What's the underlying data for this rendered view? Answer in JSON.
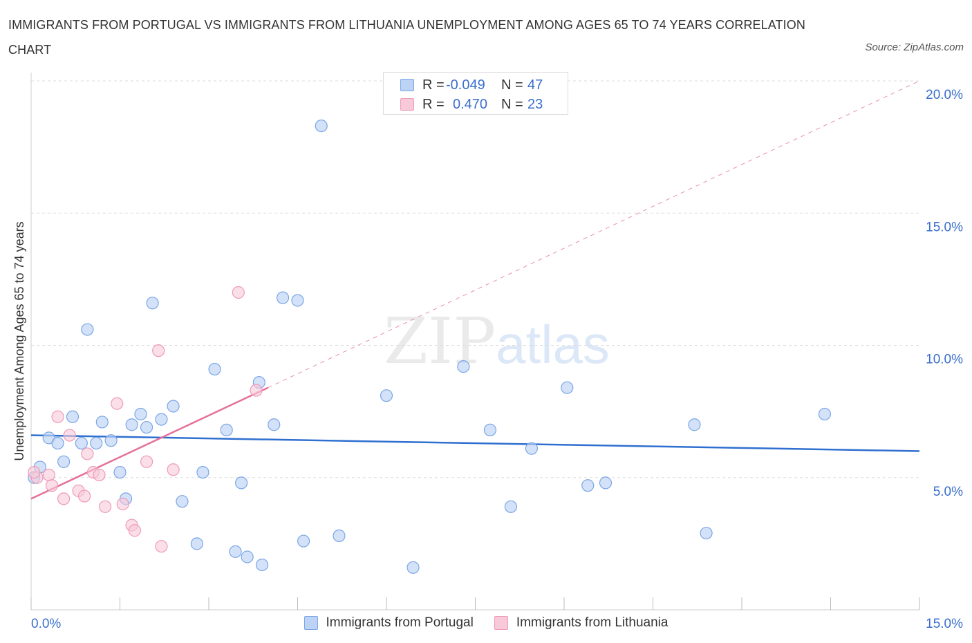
{
  "title": "IMMIGRANTS FROM PORTUGAL VS IMMIGRANTS FROM LITHUANIA UNEMPLOYMENT AMONG AGES 65 TO 74 YEARS CORRELATION CHART",
  "source": "Source: ZipAtlas.com",
  "watermark": {
    "zip": "ZIP",
    "atlas": "atlas"
  },
  "legend": {
    "rows": [
      {
        "r_label": "R =",
        "r_value": "-0.049",
        "n_label": "N =",
        "n_value": "47"
      },
      {
        "r_label": "R =",
        "r_value": "0.470",
        "n_label": "N =",
        "n_value": "23"
      }
    ]
  },
  "bottom_legend": {
    "portugal": "Immigrants from Portugal",
    "lithuania": "Immigrants from Lithuania"
  },
  "colors": {
    "blue_fill": "#bcd3f5",
    "blue_stroke": "#7aa6e6",
    "blue_line": "#2f6fd0",
    "pink_fill": "#f8c9d8",
    "pink_stroke": "#ee9ab6",
    "pink_line": "#e5709a",
    "grid": "#dddddd",
    "axis_text": "#3a6fcc"
  },
  "chart_data": {
    "type": "scatter",
    "title": "IMMIGRANTS FROM PORTUGAL VS IMMIGRANTS FROM LITHUANIA UNEMPLOYMENT AMONG AGES 65 TO 74 YEARS CORRELATION CHART",
    "xlabel": "",
    "ylabel": "Unemployment Among Ages 65 to 74 years",
    "xlim": [
      0,
      15
    ],
    "ylim": [
      0,
      20
    ],
    "x_tick_labels": {
      "left": "0.0%",
      "right": "15.0%"
    },
    "y_ticks": [
      {
        "value": 5,
        "label": "5.0%"
      },
      {
        "value": 10,
        "label": "10.0%"
      },
      {
        "value": 15,
        "label": "15.0%"
      },
      {
        "value": 20,
        "label": "20.0%"
      }
    ],
    "series": [
      {
        "name": "Immigrants from Portugal",
        "R": -0.049,
        "N": 47,
        "trend": {
          "x": [
            0,
            15
          ],
          "y": [
            6.6,
            6.0
          ]
        },
        "points": [
          [
            0.05,
            5.0
          ],
          [
            0.15,
            5.4
          ],
          [
            0.3,
            6.5
          ],
          [
            0.45,
            6.3
          ],
          [
            0.55,
            5.6
          ],
          [
            0.7,
            7.3
          ],
          [
            0.85,
            6.3
          ],
          [
            0.95,
            10.6
          ],
          [
            1.1,
            6.3
          ],
          [
            1.2,
            7.1
          ],
          [
            1.35,
            6.4
          ],
          [
            1.5,
            5.2
          ],
          [
            1.6,
            4.2
          ],
          [
            1.7,
            7.0
          ],
          [
            1.85,
            7.4
          ],
          [
            1.95,
            6.9
          ],
          [
            2.05,
            11.6
          ],
          [
            2.2,
            7.2
          ],
          [
            2.4,
            7.7
          ],
          [
            2.55,
            4.1
          ],
          [
            2.8,
            2.5
          ],
          [
            2.9,
            5.2
          ],
          [
            3.1,
            9.1
          ],
          [
            3.3,
            6.8
          ],
          [
            3.45,
            2.2
          ],
          [
            3.55,
            4.8
          ],
          [
            3.65,
            2.0
          ],
          [
            3.85,
            8.6
          ],
          [
            3.9,
            1.7
          ],
          [
            4.1,
            7.0
          ],
          [
            4.25,
            11.8
          ],
          [
            4.5,
            11.7
          ],
          [
            4.6,
            2.6
          ],
          [
            4.9,
            18.3
          ],
          [
            5.2,
            2.8
          ],
          [
            6.0,
            8.1
          ],
          [
            6.45,
            1.6
          ],
          [
            7.3,
            9.2
          ],
          [
            7.75,
            6.8
          ],
          [
            8.1,
            3.9
          ],
          [
            8.45,
            6.1
          ],
          [
            9.05,
            8.4
          ],
          [
            9.4,
            4.7
          ],
          [
            9.7,
            4.8
          ],
          [
            11.2,
            7.0
          ],
          [
            11.4,
            2.9
          ],
          [
            13.4,
            7.4
          ]
        ]
      },
      {
        "name": "Immigrants from Lithuania",
        "R": 0.47,
        "N": 23,
        "trend": {
          "x": [
            0,
            4.0
          ],
          "y": [
            4.2,
            8.4
          ]
        },
        "trend_extension": {
          "x": [
            4.0,
            15
          ],
          "y": [
            8.4,
            20.0
          ]
        },
        "points": [
          [
            0.1,
            5.0
          ],
          [
            0.3,
            5.1
          ],
          [
            0.35,
            4.7
          ],
          [
            0.45,
            7.3
          ],
          [
            0.55,
            4.2
          ],
          [
            0.65,
            6.6
          ],
          [
            0.8,
            4.5
          ],
          [
            0.9,
            4.3
          ],
          [
            0.95,
            5.9
          ],
          [
            1.05,
            5.2
          ],
          [
            1.15,
            5.1
          ],
          [
            1.25,
            3.9
          ],
          [
            1.45,
            7.8
          ],
          [
            1.55,
            4.0
          ],
          [
            1.7,
            3.2
          ],
          [
            1.75,
            3.0
          ],
          [
            1.95,
            5.6
          ],
          [
            2.15,
            9.8
          ],
          [
            2.2,
            2.4
          ],
          [
            2.4,
            5.3
          ],
          [
            3.5,
            12.0
          ],
          [
            3.8,
            8.3
          ],
          [
            0.05,
            5.2
          ]
        ]
      }
    ]
  }
}
